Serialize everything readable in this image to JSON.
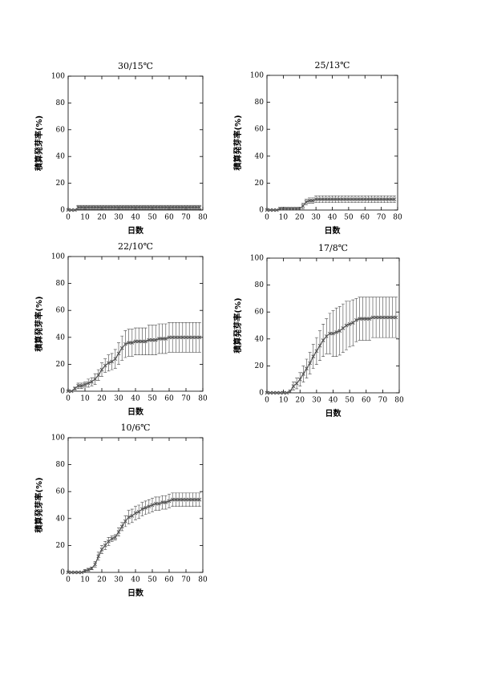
{
  "chart_data": [
    {
      "type": "line",
      "title": "30/15℃",
      "xlabel": "日数",
      "ylabel": "積算発芽率(%)",
      "x": [
        0,
        2,
        4,
        6,
        8,
        10,
        12,
        14,
        16,
        18,
        20,
        22,
        24,
        26,
        28,
        30,
        32,
        34,
        36,
        38,
        40,
        42,
        44,
        46,
        48,
        50,
        52,
        54,
        56,
        58,
        60,
        62,
        64,
        66,
        68,
        70,
        72,
        74,
        76,
        78
      ],
      "values": [
        0,
        0,
        0,
        2,
        2,
        2,
        2,
        2,
        2,
        2,
        2,
        2,
        2,
        2,
        2,
        2,
        2,
        2,
        2,
        2,
        2,
        2,
        2,
        2,
        2,
        2,
        2,
        2,
        2,
        2,
        2,
        2,
        2,
        2,
        2,
        2,
        2,
        2,
        2,
        2
      ],
      "errors": [
        0,
        0,
        0,
        1.5,
        1.5,
        1.5,
        1.5,
        1.5,
        1.5,
        1.5,
        1.5,
        1.5,
        1.5,
        1.5,
        1.5,
        1.5,
        1.5,
        1.5,
        1.5,
        1.5,
        1.5,
        1.5,
        1.5,
        1.5,
        1.5,
        1.5,
        1.5,
        1.5,
        1.5,
        1.5,
        1.5,
        1.5,
        1.5,
        1.5,
        1.5,
        1.5,
        1.5,
        1.5,
        1.5,
        1.5
      ],
      "color": "#555555",
      "xlim": [
        0,
        80
      ],
      "ylim": [
        0,
        100
      ],
      "xticks": [
        0,
        10,
        20,
        30,
        40,
        50,
        60,
        70,
        80
      ],
      "yticks": [
        0,
        20,
        40,
        60,
        80,
        100
      ]
    },
    {
      "type": "line",
      "title": "25/13℃",
      "xlabel": "日数",
      "ylabel": "積算発芽率(%)",
      "x": [
        0,
        2,
        4,
        6,
        8,
        10,
        12,
        14,
        16,
        18,
        20,
        22,
        24,
        26,
        28,
        30,
        32,
        34,
        36,
        38,
        40,
        42,
        44,
        46,
        48,
        50,
        52,
        54,
        56,
        58,
        60,
        62,
        64,
        66,
        68,
        70,
        72,
        74,
        76,
        78
      ],
      "values": [
        0,
        0,
        0,
        0,
        1,
        1,
        1,
        1,
        1,
        1,
        1,
        3,
        6,
        7,
        7,
        8,
        8,
        8,
        8,
        8,
        8,
        8,
        8,
        8,
        8,
        8,
        8,
        8,
        8,
        8,
        8,
        8,
        8,
        8,
        8,
        8,
        8,
        8,
        8,
        8
      ],
      "errors": [
        0,
        0,
        0,
        0,
        1,
        1,
        1,
        1,
        1,
        1,
        1,
        2,
        2,
        2,
        2,
        2.5,
        2.5,
        2.5,
        2.5,
        2.5,
        2.5,
        2.5,
        2.5,
        2.5,
        2.5,
        2.5,
        2.5,
        2.5,
        2.5,
        2.5,
        2.5,
        2.5,
        2.5,
        2.5,
        2.5,
        2.5,
        2.5,
        2.5,
        2.5,
        2.5
      ],
      "color": "#555555",
      "xlim": [
        0,
        80
      ],
      "ylim": [
        0,
        100
      ],
      "xticks": [
        0,
        10,
        20,
        30,
        40,
        50,
        60,
        70,
        80
      ],
      "yticks": [
        0,
        20,
        40,
        60,
        80,
        100
      ]
    },
    {
      "type": "line",
      "title": "22/10℃",
      "xlabel": "日数",
      "ylabel": "積算発芽率(%)",
      "x": [
        0,
        2,
        4,
        6,
        8,
        10,
        12,
        14,
        16,
        18,
        20,
        22,
        24,
        26,
        28,
        30,
        32,
        34,
        36,
        38,
        40,
        42,
        44,
        46,
        48,
        50,
        52,
        54,
        56,
        58,
        60,
        62,
        64,
        66,
        68,
        70,
        72,
        74,
        76,
        78
      ],
      "values": [
        0,
        0,
        2,
        4,
        4,
        5,
        6,
        7,
        9,
        12,
        16,
        19,
        21,
        22,
        24,
        28,
        32,
        35,
        36,
        36,
        37,
        37,
        37,
        37,
        38,
        38,
        38,
        39,
        39,
        39,
        40,
        40,
        40,
        40,
        40,
        40,
        40,
        40,
        40,
        40
      ],
      "errors": [
        0,
        0,
        1,
        2,
        2,
        2,
        3,
        3,
        4,
        4,
        5,
        5,
        6,
        6,
        7,
        8,
        9,
        10,
        10,
        10,
        10,
        10,
        10,
        10,
        11,
        11,
        11,
        11,
        11,
        11,
        11,
        11,
        11,
        11,
        11,
        11,
        11,
        11,
        11,
        11
      ],
      "color": "#555555",
      "xlim": [
        0,
        80
      ],
      "ylim": [
        0,
        100
      ],
      "xticks": [
        0,
        10,
        20,
        30,
        40,
        50,
        60,
        70,
        80
      ],
      "yticks": [
        0,
        20,
        40,
        60,
        80,
        100
      ]
    },
    {
      "type": "line",
      "title": "17/8℃",
      "xlabel": "日数",
      "ylabel": "積算発芽率(%)",
      "x": [
        0,
        2,
        4,
        6,
        8,
        10,
        12,
        14,
        16,
        18,
        20,
        22,
        24,
        26,
        28,
        30,
        32,
        34,
        36,
        38,
        40,
        42,
        44,
        46,
        48,
        50,
        52,
        54,
        56,
        58,
        60,
        62,
        64,
        66,
        68,
        70,
        72,
        74,
        76,
        78
      ],
      "values": [
        0,
        0,
        0,
        0,
        0,
        0,
        0,
        1,
        5,
        7,
        10,
        14,
        18,
        22,
        27,
        31,
        35,
        39,
        42,
        44,
        44,
        45,
        46,
        48,
        50,
        51,
        52,
        54,
        55,
        55,
        55,
        55,
        56,
        56,
        56,
        56,
        56,
        56,
        56,
        56
      ],
      "errors": [
        0,
        0,
        0,
        0,
        0,
        0,
        0,
        1,
        3,
        4,
        5,
        6,
        7,
        8,
        9,
        10,
        11,
        12,
        13,
        15,
        17,
        18,
        18,
        18,
        18,
        17,
        17,
        16,
        16,
        16,
        16,
        16,
        15,
        15,
        15,
        15,
        15,
        15,
        15,
        15
      ],
      "color": "#555555",
      "xlim": [
        0,
        80
      ],
      "ylim": [
        0,
        100
      ],
      "xticks": [
        0,
        10,
        20,
        30,
        40,
        50,
        60,
        70,
        80
      ],
      "yticks": [
        0,
        20,
        40,
        60,
        80,
        100
      ]
    },
    {
      "type": "line",
      "title": "10/6℃",
      "xlabel": "日数",
      "ylabel": "積算発芽率(%)",
      "x": [
        0,
        2,
        4,
        6,
        8,
        10,
        12,
        14,
        16,
        18,
        20,
        22,
        24,
        26,
        28,
        30,
        32,
        34,
        36,
        38,
        40,
        42,
        44,
        46,
        48,
        50,
        52,
        54,
        56,
        58,
        60,
        62,
        64,
        66,
        68,
        70,
        72,
        74,
        76,
        78
      ],
      "values": [
        0,
        0,
        0,
        0,
        0,
        1,
        2,
        3,
        6,
        12,
        17,
        20,
        23,
        25,
        26,
        30,
        34,
        38,
        41,
        42,
        44,
        45,
        47,
        48,
        49,
        50,
        51,
        51,
        52,
        52,
        53,
        54,
        54,
        54,
        54,
        54,
        54,
        54,
        54,
        54
      ],
      "errors": [
        0,
        0,
        0,
        0,
        0,
        1,
        1,
        1,
        2,
        3,
        3,
        3,
        3,
        2,
        2,
        3,
        3,
        4,
        5,
        5,
        5,
        5,
        5,
        5,
        5,
        5,
        5,
        5,
        5,
        5,
        5,
        5,
        5,
        5,
        5,
        5,
        5,
        5,
        5,
        5
      ],
      "color": "#555555",
      "xlim": [
        0,
        80
      ],
      "ylim": [
        0,
        100
      ],
      "xticks": [
        0,
        10,
        20,
        30,
        40,
        50,
        60,
        70,
        80
      ],
      "yticks": [
        0,
        20,
        40,
        60,
        80,
        100
      ]
    }
  ]
}
